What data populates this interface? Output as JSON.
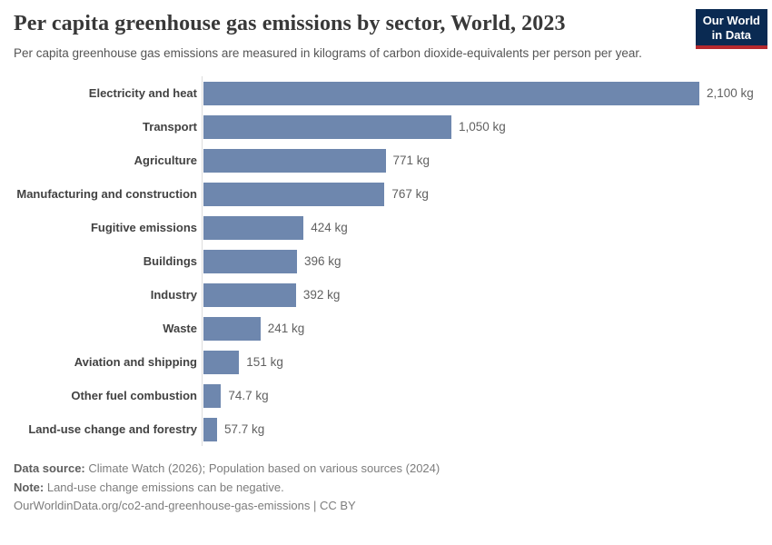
{
  "header": {
    "title": "Per capita greenhouse gas emissions by sector, World, 2023",
    "subtitle": "Per capita greenhouse gas emissions are measured in kilograms of carbon dioxide-equivalents per person per year.",
    "logo_line1": "Our World",
    "logo_line2": "in Data"
  },
  "chart_data": {
    "type": "bar",
    "orientation": "horizontal",
    "title": "Per capita greenhouse gas emissions by sector, World, 2023",
    "unit": "kg",
    "xlim": [
      0,
      2100
    ],
    "grid": "off",
    "categories": [
      "Electricity and heat",
      "Transport",
      "Agriculture",
      "Manufacturing and construction",
      "Fugitive emissions",
      "Buildings",
      "Industry",
      "Waste",
      "Aviation and shipping",
      "Other fuel combustion",
      "Land-use change and forestry"
    ],
    "values": [
      2100,
      1050,
      771,
      767,
      424,
      396,
      392,
      241,
      151,
      74.7,
      57.7
    ],
    "value_labels": [
      "2,100 kg",
      "1,050 kg",
      "771 kg",
      "767 kg",
      "424 kg",
      "396 kg",
      "392 kg",
      "241 kg",
      "151 kg",
      "74.7 kg",
      "57.7 kg"
    ],
    "bar_color": "#6e87ae",
    "axis_line_color": "#dcdcdc"
  },
  "footer": {
    "data_source_label": "Data source:",
    "data_source_text": "Climate Watch (2026); Population based on various sources (2024)",
    "note_label": "Note:",
    "note_text": "Land-use change emissions can be negative.",
    "url_line": "OurWorldinData.org/co2-and-greenhouse-gas-emissions | CC BY"
  },
  "colors": {
    "logo_background": "#0a2a52",
    "logo_accent": "#b5292e",
    "bar": "#6e87ae"
  }
}
